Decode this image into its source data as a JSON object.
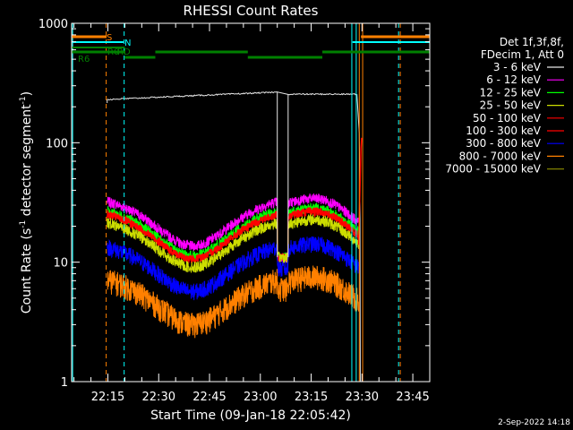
{
  "chart_data": {
    "type": "line",
    "title": "RHESSI Count Rates",
    "xlabel": "Start Time (09-Jan-18 22:05:42)",
    "ylabel_main": "Count Rate (s",
    "ylabel_sup": "-1",
    "ylabel_mid": " detector segment",
    "ylabel_sup2": "-1",
    "ylabel_end": ")",
    "yscale": "log",
    "ylim": [
      1,
      1000
    ],
    "y_ticks": [
      {
        "value": 1,
        "label": "1"
      },
      {
        "value": 10,
        "label": "10"
      },
      {
        "value": 100,
        "label": "100"
      },
      {
        "value": 1000,
        "label": "1000"
      }
    ],
    "x_ticks": [
      {
        "minutes": 15,
        "label": "22:15"
      },
      {
        "minutes": 30,
        "label": "22:30"
      },
      {
        "minutes": 45,
        "label": "22:45"
      },
      {
        "minutes": 60,
        "label": "23:00"
      },
      {
        "minutes": 75,
        "label": "23:15"
      },
      {
        "minutes": 90,
        "label": "23:30"
      },
      {
        "minutes": 105,
        "label": "23:45"
      }
    ],
    "legend_header": [
      "Det 1f,3f,8f,",
      "FDecim 1, Att 0"
    ],
    "series": [
      {
        "name": "3 - 6 keV",
        "color": "#e8e8e8"
      },
      {
        "name": "6 - 12 keV",
        "color": "#ff00ff"
      },
      {
        "name": "12 - 25 keV",
        "color": "#00ff00"
      },
      {
        "name": "25 - 50 keV",
        "color": "#ccdd00"
      },
      {
        "name": "50 - 100 keV",
        "color": "#ff0000"
      },
      {
        "name": "100 - 300 keV",
        "color": "#ff0000"
      },
      {
        "name": "300 - 800 keV",
        "color": "#0000ff"
      },
      {
        "name": "800 - 7000 keV",
        "color": "#ff8000"
      },
      {
        "name": "7000 - 15000 keV",
        "color": "#808000"
      }
    ],
    "flag_labels": {
      "s": "S",
      "n": "N",
      "r0": "R0",
      "r6": "R6",
      "rd": "RD"
    },
    "timestamp": "2-Sep-2022 14:18"
  }
}
